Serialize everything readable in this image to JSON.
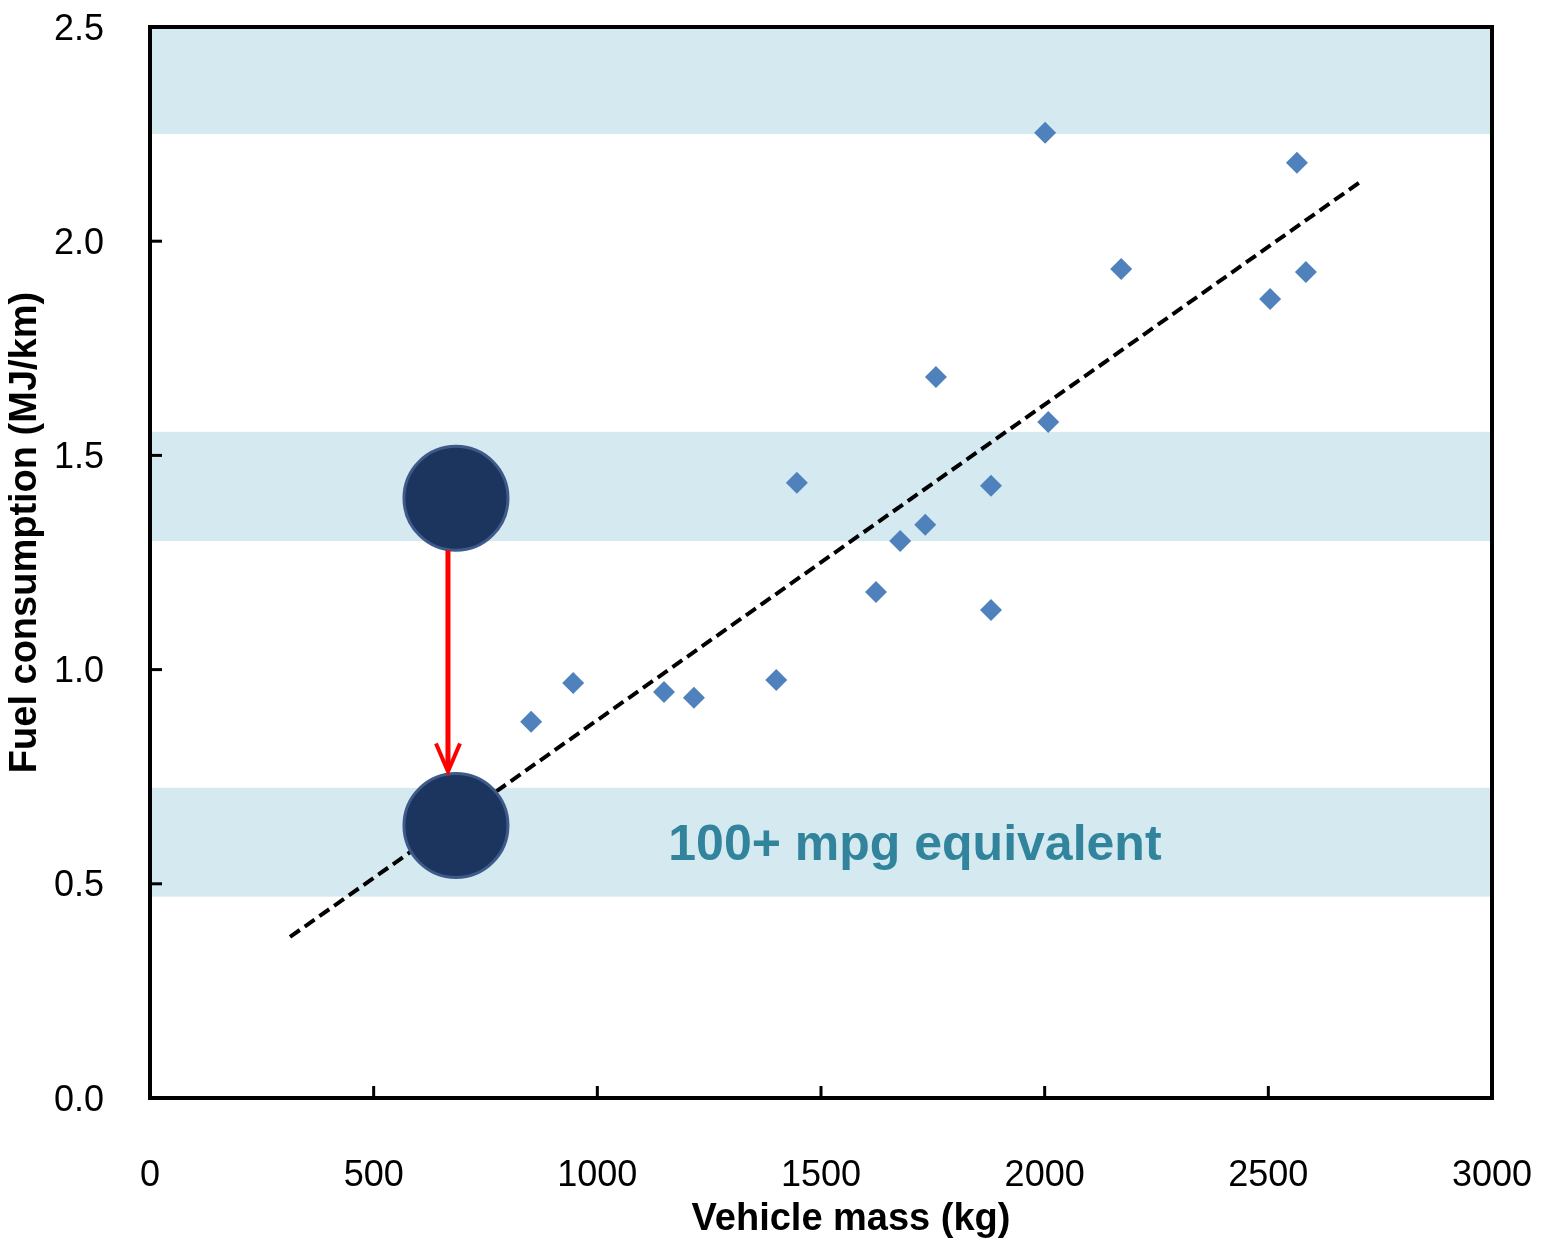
{
  "chart_data": {
    "type": "scatter",
    "xlabel": "Vehicle mass (kg)",
    "ylabel": "Fuel consumption (MJ/km)",
    "xlim": [
      0,
      3000
    ],
    "xticks": [
      0,
      500,
      1000,
      1500,
      2000,
      2500,
      3000
    ],
    "ylim": [
      0,
      2.5
    ],
    "yticks": [
      {
        "value": 0,
        "label": "0.0"
      },
      {
        "value": 0.5,
        "label": "0.5"
      },
      {
        "value": 1,
        "label": "1.0"
      },
      {
        "value": 1.5,
        "label": "1.5"
      },
      {
        "value": 2,
        "label": "2.0"
      },
      {
        "value": 2.5,
        "label": "2.5"
      }
    ],
    "grid": false,
    "bands": [
      {
        "axis": "y",
        "from": 2.25,
        "to": 2.5,
        "color": "#d4eaf0"
      },
      {
        "axis": "y",
        "from": 1.3,
        "to": 1.555,
        "color": "#d4eaf0"
      },
      {
        "axis": "y",
        "from": 0.47,
        "to": 0.724,
        "color": "#d4eaf0",
        "label": "100+ mpg equivalent"
      }
    ],
    "series": [
      {
        "type": "line",
        "color": "#000000",
        "line_style": "dashed",
        "marker": "none",
        "x": [
          313,
          2705
        ],
        "values": [
          0.376,
          2.138
        ]
      },
      {
        "type": "scatter",
        "color": "#4f81bd",
        "marker": "diamond",
        "x": [
          852,
          946,
          1149,
          1216,
          1400,
          1446,
          1623,
          1677,
          1733,
          1757,
          1880,
          1880,
          2001,
          2008,
          2171,
          2504,
          2564,
          2584
        ],
        "values": [
          0.878,
          0.969,
          0.948,
          0.934,
          0.976,
          1.436,
          1.181,
          1.3,
          1.338,
          1.683,
          1.139,
          1.429,
          2.253,
          1.578,
          1.935,
          1.865,
          2.183,
          1.928
        ]
      },
      {
        "type": "scatter",
        "color": "#1c355e",
        "marker": "circle",
        "x": [
          684,
          684
        ],
        "values": [
          1.4,
          0.636
        ]
      }
    ]
  }
}
